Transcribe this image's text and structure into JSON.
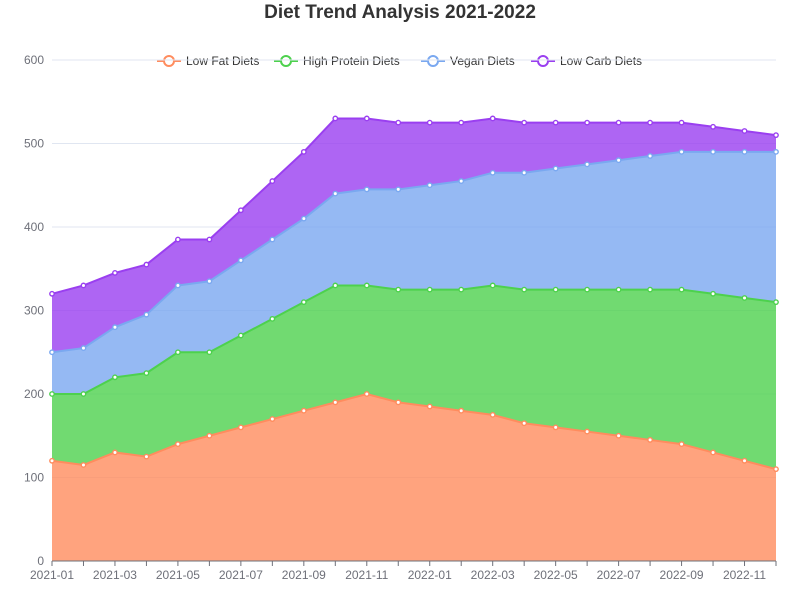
{
  "chart_data": {
    "type": "area",
    "stacked": true,
    "title": "Diet Trend Analysis 2021-2022",
    "xlabel": "",
    "ylabel": "",
    "ylim": [
      0,
      600
    ],
    "yticks": [
      0,
      100,
      200,
      300,
      400,
      500,
      600
    ],
    "x": [
      "2021-01",
      "2021-02",
      "2021-03",
      "2021-04",
      "2021-05",
      "2021-06",
      "2021-07",
      "2021-08",
      "2021-09",
      "2021-10",
      "2021-11",
      "2021-12",
      "2022-01",
      "2022-02",
      "2022-03",
      "2022-04",
      "2022-05",
      "2022-06",
      "2022-07",
      "2022-08",
      "2022-09",
      "2022-10",
      "2022-11",
      "2022-12"
    ],
    "xtick_labels": [
      "2021-01",
      "2021-03",
      "2021-05",
      "2021-07",
      "2021-09",
      "2021-11",
      "2022-01",
      "2022-03",
      "2022-05",
      "2022-07",
      "2022-09",
      "2022-11"
    ],
    "grid": true,
    "legend_position": "top",
    "series": [
      {
        "name": "Low Fat Diets",
        "color": "#ff8c5e",
        "values": [
          120,
          115,
          130,
          125,
          140,
          150,
          160,
          170,
          180,
          190,
          200,
          190,
          185,
          180,
          175,
          165,
          160,
          155,
          150,
          145,
          140,
          130,
          120,
          110
        ]
      },
      {
        "name": "High Protein Diets",
        "color": "#4dd14d",
        "values": [
          80,
          85,
          90,
          100,
          110,
          100,
          110,
          120,
          130,
          140,
          130,
          135,
          140,
          145,
          155,
          160,
          165,
          170,
          175,
          180,
          185,
          190,
          195,
          200
        ]
      },
      {
        "name": "Vegan Diets",
        "color": "#7aa8f0",
        "values": [
          50,
          55,
          60,
          70,
          80,
          85,
          90,
          95,
          100,
          110,
          115,
          120,
          125,
          130,
          135,
          140,
          145,
          150,
          155,
          160,
          165,
          170,
          175,
          180
        ]
      },
      {
        "name": "Low Carb Diets",
        "color": "#9a3ff0",
        "values": [
          70,
          75,
          65,
          60,
          55,
          50,
          60,
          70,
          80,
          90,
          85,
          80,
          75,
          70,
          65,
          60,
          55,
          50,
          45,
          40,
          35,
          30,
          25,
          20
        ]
      }
    ]
  }
}
